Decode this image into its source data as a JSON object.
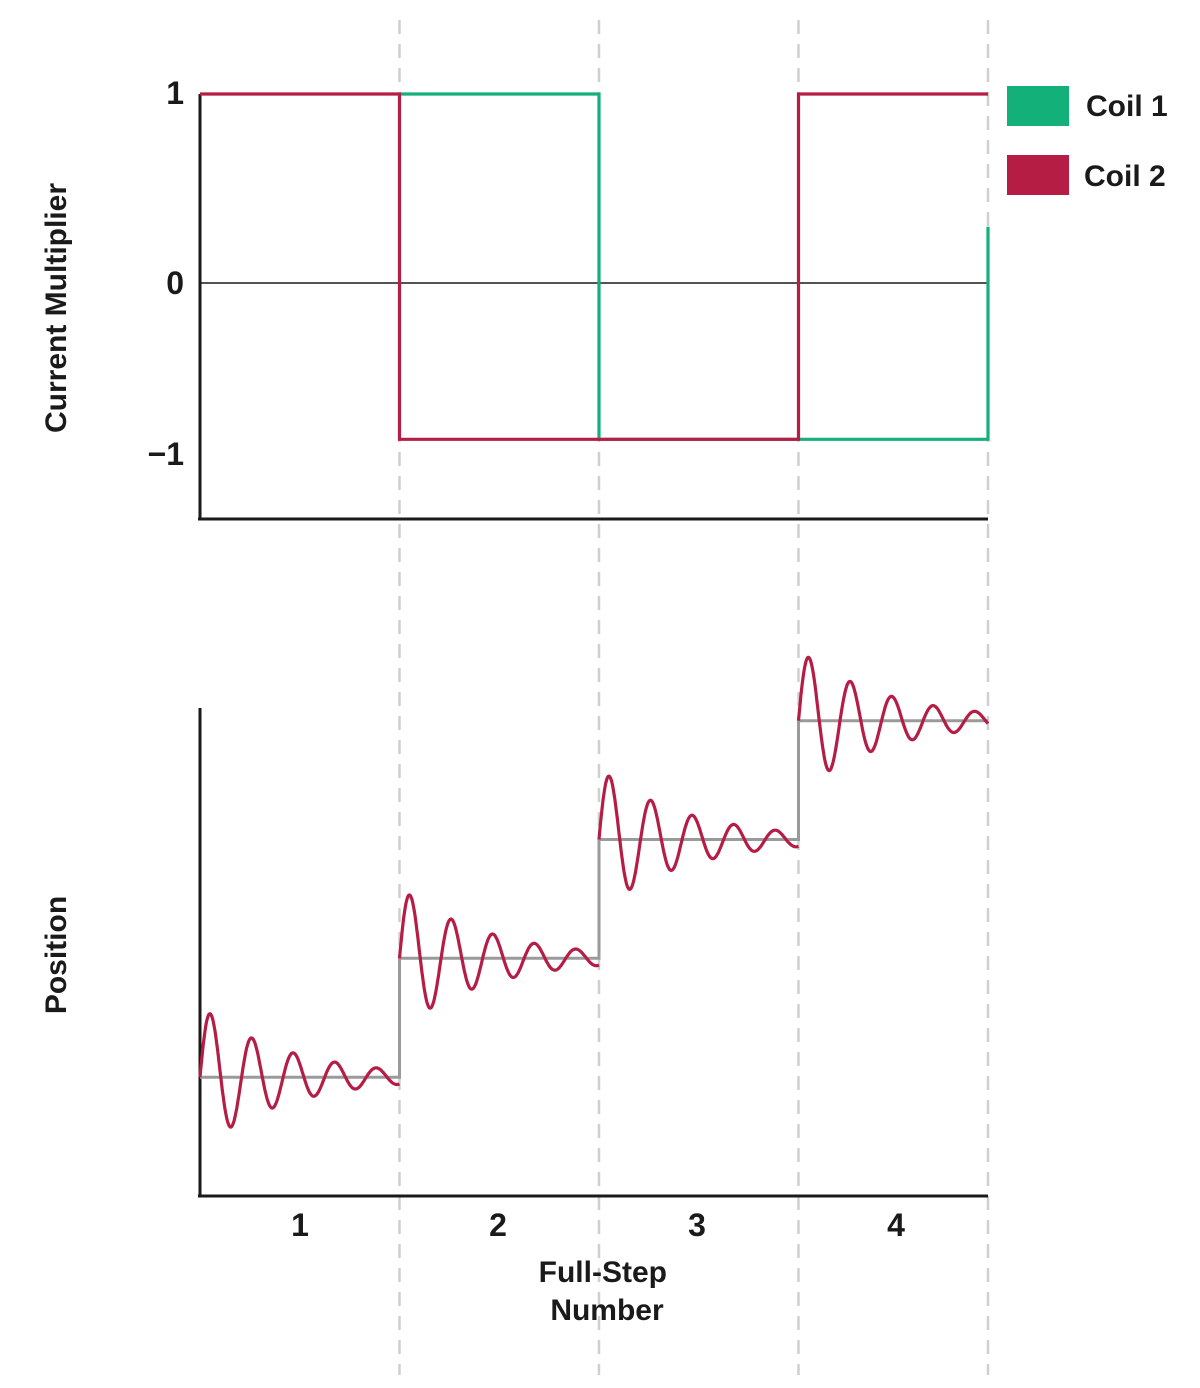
{
  "chart_data": [
    {
      "type": "line",
      "panel": "current",
      "ylabel": "Current Multiplier",
      "xlabel": "",
      "y_ticks": [
        "1",
        "0",
        "−1"
      ],
      "ylim": [
        -1.4,
        1
      ],
      "xlim": [
        0.5,
        4.45
      ],
      "grid": false,
      "step_boundaries": [
        1.5,
        2.5,
        3.5,
        4.45
      ],
      "legend_position": "top-right",
      "series": [
        {
          "name": "Coil 1",
          "color": "#13b07a",
          "points": [
            [
              1.5,
              1
            ],
            [
              2.5,
              1
            ],
            [
              2.5,
              -0.95
            ],
            [
              4.45,
              -0.95
            ],
            [
              4.45,
              0.25
            ]
          ]
        },
        {
          "name": "Coil 2",
          "color": "#b51d45",
          "points": [
            [
              0.5,
              1
            ],
            [
              1.5,
              1
            ],
            [
              1.5,
              -0.95
            ],
            [
              3.5,
              -0.95
            ],
            [
              3.5,
              1
            ],
            [
              4.45,
              1
            ]
          ]
        }
      ]
    },
    {
      "type": "line",
      "panel": "position",
      "ylabel": "Position",
      "xlabel": "Full-Step Number",
      "x_ticks": [
        "1",
        "2",
        "3",
        "4"
      ],
      "xlim": [
        0.5,
        4.45
      ],
      "ylim": [
        0,
        4.3
      ],
      "grid": false,
      "series": [
        {
          "role": "ideal-position",
          "color": "#9a9a9a",
          "steps": [
            [
              0.5,
              1
            ],
            [
              1.5,
              2
            ],
            [
              2.5,
              3
            ],
            [
              3.5,
              4
            ]
          ]
        },
        {
          "role": "actual-position",
          "color": "#b51d45",
          "overshoot": 0.6,
          "decay": 2.3,
          "cycles_per_step": 4.8
        }
      ]
    }
  ]
}
